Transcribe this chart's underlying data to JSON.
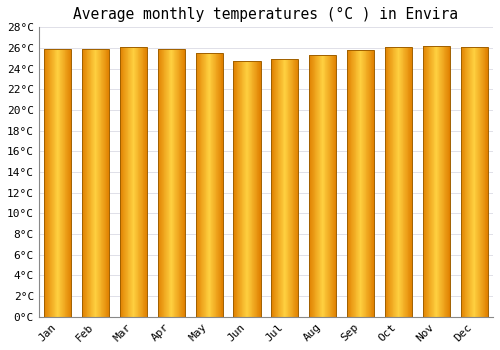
{
  "title": "Average monthly temperatures (°C ) in Envira",
  "months": [
    "Jan",
    "Feb",
    "Mar",
    "Apr",
    "May",
    "Jun",
    "Jul",
    "Aug",
    "Sep",
    "Oct",
    "Nov",
    "Dec"
  ],
  "values": [
    25.9,
    25.9,
    26.1,
    25.9,
    25.5,
    24.7,
    24.9,
    25.3,
    25.8,
    26.1,
    26.2,
    26.1
  ],
  "ylim": [
    0,
    28
  ],
  "yticks": [
    0,
    2,
    4,
    6,
    8,
    10,
    12,
    14,
    16,
    18,
    20,
    22,
    24,
    26,
    28
  ],
  "bar_color_edge": "#E08000",
  "bar_color_center": "#FFD040",
  "bar_color_mid": "#FFA800",
  "bar_outline": "#A06000",
  "bg_color": "#FFFFFF",
  "plot_bg_color": "#FFFFFF",
  "grid_color": "#E0E0E8",
  "title_fontsize": 10.5,
  "tick_fontsize": 8,
  "font_family": "monospace",
  "bar_width": 0.72
}
